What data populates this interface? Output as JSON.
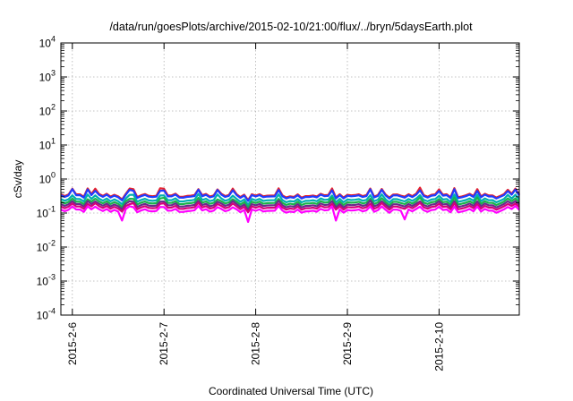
{
  "chart_data": {
    "type": "line",
    "title": "/data/run/goesPlots/archive/2015-02-10/21:00/flux/../bryn/5daysEarth.plot",
    "xlabel": "Coordinated Universal Time (UTC)",
    "ylabel": "cSv/day",
    "yscale": "log",
    "ylim": [
      0.0001,
      10000
    ],
    "yticks": [
      {
        "value": 0.0001,
        "base": "10",
        "exp": "-4"
      },
      {
        "value": 0.001,
        "base": "10",
        "exp": "-3"
      },
      {
        "value": 0.01,
        "base": "10",
        "exp": "-2"
      },
      {
        "value": 0.1,
        "base": "10",
        "exp": "-1"
      },
      {
        "value": 1,
        "base": "10",
        "exp": "0"
      },
      {
        "value": 10,
        "base": "10",
        "exp": "1"
      },
      {
        "value": 100,
        "base": "10",
        "exp": "2"
      },
      {
        "value": 1000,
        "base": "10",
        "exp": "3"
      },
      {
        "value": 10000,
        "base": "10",
        "exp": "4"
      }
    ],
    "xlim": [
      "2015-02-05T21:00",
      "2015-02-10T21:00"
    ],
    "xticks": [
      {
        "value": "2015-02-06T00:00",
        "label": "2015-2-6"
      },
      {
        "value": "2015-02-07T00:00",
        "label": "2015-2-7"
      },
      {
        "value": "2015-02-08T00:00",
        "label": "2015-2-8"
      },
      {
        "value": "2015-02-09T00:00",
        "label": "2015-2-9"
      },
      {
        "value": "2015-02-10T00:00",
        "label": "2015-2-10"
      }
    ],
    "grid": true,
    "series": [
      {
        "color": "#e8202a",
        "level": 0.33,
        "spike_up": [
          1.3,
          1.45
        ]
      },
      {
        "color": "#1f3cff",
        "level": 0.31,
        "spike_up": [
          1.25,
          1.4
        ]
      },
      {
        "color": "#00aeb0",
        "level": 0.24,
        "spike_up": [
          1.15,
          1.3
        ]
      },
      {
        "color": "#19b34a",
        "level": 0.2,
        "spike_up": [
          1.1,
          1.25
        ]
      },
      {
        "color": "#6a2b8c",
        "level": 0.17,
        "spike_up": [
          1.1,
          1.2
        ]
      },
      {
        "color": "#d6007a",
        "level": 0.145,
        "spike_up": [
          1.1,
          1.2
        ]
      },
      {
        "color": "#ff00ff",
        "level": 0.118,
        "spike_up": [
          1.1,
          1.2
        ]
      }
    ],
    "dips": [
      {
        "x": "2015-02-06T12:30",
        "value": 0.06
      },
      {
        "x": "2015-02-07T22:00",
        "value": 0.055
      },
      {
        "x": "2015-02-08T21:00",
        "value": 0.06
      },
      {
        "x": "2015-02-09T15:00",
        "value": 0.065
      }
    ]
  }
}
